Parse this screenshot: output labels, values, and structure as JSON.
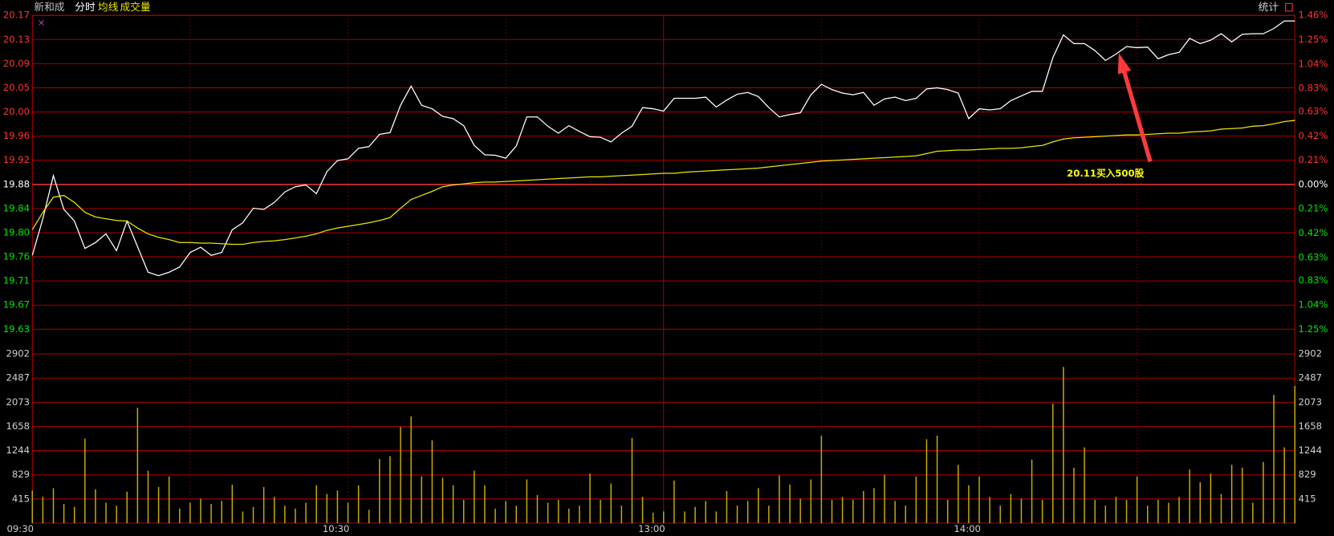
{
  "toolbar": {
    "stats": "统计"
  },
  "chart_data": [
    {
      "type": "line",
      "title": "新和成",
      "categories": [
        "09:30",
        null,
        null,
        null,
        null,
        null,
        null,
        null,
        null,
        null,
        null,
        null,
        null,
        null,
        null,
        null,
        null,
        null,
        null,
        null,
        null,
        null,
        null,
        null,
        null,
        null,
        null,
        null,
        null,
        null,
        "10:30",
        null,
        null,
        null,
        null,
        null,
        null,
        null,
        null,
        null,
        null,
        null,
        null,
        null,
        null,
        null,
        null,
        null,
        null,
        null,
        null,
        null,
        null,
        null,
        null,
        null,
        null,
        null,
        null,
        null,
        "13:00",
        null,
        null,
        null,
        null,
        null,
        null,
        null,
        null,
        null,
        null,
        null,
        null,
        null,
        null,
        null,
        null,
        null,
        null,
        null,
        null,
        null,
        null,
        null,
        null,
        null,
        null,
        null,
        null,
        null,
        "14:00",
        null,
        null,
        null,
        null,
        null,
        null,
        null,
        null,
        null,
        null,
        null,
        null,
        null,
        null,
        null,
        null,
        null,
        null,
        null,
        null,
        null,
        null,
        null,
        null,
        null,
        null,
        null,
        null,
        null,
        null
      ],
      "series": [
        {
          "name": "分时",
          "color": "#ffffff",
          "values": [
            19.758,
            19.821,
            19.895,
            19.837,
            19.817,
            19.77,
            19.78,
            19.795,
            19.766,
            19.817,
            19.773,
            19.729,
            19.723,
            19.729,
            19.738,
            19.763,
            19.772,
            19.758,
            19.763,
            19.802,
            19.814,
            19.839,
            19.837,
            19.849,
            19.867,
            19.876,
            19.879,
            19.864,
            19.902,
            19.921,
            19.924,
            19.942,
            19.945,
            19.966,
            19.969,
            20.016,
            20.049,
            20.016,
            20.01,
            19.997,
            19.993,
            19.981,
            19.947,
            19.931,
            19.93,
            19.925,
            19.946,
            19.996,
            19.996,
            19.98,
            19.968,
            19.981,
            19.971,
            19.962,
            19.961,
            19.953,
            19.968,
            19.98,
            20.012,
            20.01,
            20.006,
            20.028,
            20.028,
            20.028,
            20.03,
            20.013,
            20.025,
            20.035,
            20.038,
            20.031,
            20.012,
            19.996,
            20.0,
            20.003,
            20.034,
            20.052,
            20.043,
            20.037,
            20.034,
            20.038,
            20.016,
            20.027,
            20.03,
            20.024,
            20.028,
            20.044,
            20.046,
            20.043,
            20.037,
            19.993,
            20.01,
            20.008,
            20.01,
            20.024,
            20.032,
            20.04,
            20.04,
            20.098,
            20.137,
            20.122,
            20.122,
            20.11,
            20.093,
            20.104,
            20.117,
            20.115,
            20.116,
            20.096,
            20.103,
            20.107,
            20.131,
            20.122,
            20.128,
            20.139,
            20.125,
            20.138,
            20.139,
            20.139,
            20.148,
            20.161,
            20.161
          ]
        },
        {
          "name": "均线",
          "color": "#e6e600",
          "values": [
            19.802,
            19.832,
            19.858,
            19.861,
            19.849,
            19.832,
            19.824,
            19.821,
            19.818,
            19.817,
            19.805,
            19.795,
            19.789,
            19.785,
            19.78,
            19.78,
            19.779,
            19.779,
            19.778,
            19.777,
            19.777,
            19.78,
            19.782,
            19.783,
            19.785,
            19.788,
            19.791,
            19.795,
            19.801,
            19.805,
            19.808,
            19.811,
            19.814,
            19.818,
            19.823,
            19.839,
            19.854,
            19.861,
            19.868,
            19.876,
            19.879,
            19.881,
            19.883,
            19.884,
            19.884,
            19.885,
            19.886,
            19.887,
            19.888,
            19.889,
            19.89,
            19.891,
            19.892,
            19.893,
            19.893,
            19.894,
            19.895,
            19.896,
            19.897,
            19.898,
            19.899,
            19.899,
            19.901,
            19.902,
            19.903,
            19.904,
            19.905,
            19.906,
            19.907,
            19.908,
            19.91,
            19.912,
            19.914,
            19.916,
            19.918,
            19.92,
            19.921,
            19.922,
            19.923,
            19.924,
            19.925,
            19.926,
            19.927,
            19.928,
            19.929,
            19.933,
            19.937,
            19.938,
            19.939,
            19.939,
            19.94,
            19.941,
            19.942,
            19.942,
            19.943,
            19.945,
            19.947,
            19.953,
            19.958,
            19.96,
            19.961,
            19.962,
            19.963,
            19.964,
            19.965,
            19.965,
            19.966,
            19.967,
            19.968,
            19.968,
            19.97,
            19.971,
            19.972,
            19.975,
            19.976,
            19.977,
            19.98,
            19.981,
            19.984,
            19.988,
            19.99
          ]
        }
      ],
      "ylim": [
        19.631,
        20.1705
      ],
      "yticks": [
        {
          "value": 20.1705,
          "label": "20.17"
        },
        {
          "value": 20.129,
          "label": "20.13"
        },
        {
          "value": 20.0875,
          "label": "20.09"
        },
        {
          "value": 20.046,
          "label": "20.05"
        },
        {
          "value": 20.0045,
          "label": "20.00"
        },
        {
          "value": 19.963,
          "label": "19.96"
        },
        {
          "value": 19.9215,
          "label": "19.92"
        },
        19.88,
        {
          "value": 19.8385,
          "label": "19.84"
        },
        {
          "value": 19.797,
          "label": "19.80"
        },
        {
          "value": 19.7555,
          "label": "19.76"
        },
        {
          "value": 19.714,
          "label": "19.71"
        },
        {
          "value": 19.6725,
          "label": "19.67"
        },
        {
          "value": 19.631,
          "label": "19.63"
        }
      ],
      "y2lim": [
        -1.25,
        1.46
      ],
      "y2ticks": [
        {
          "value": 1.46,
          "label": "1.46%"
        },
        {
          "value": 1.25,
          "label": "1.25%"
        },
        {
          "value": 1.04,
          "label": "1.04%"
        },
        {
          "value": 0.83,
          "label": "0.83%"
        },
        {
          "value": 0.63,
          "label": "0.63%"
        },
        {
          "value": 0.42,
          "label": "0.42%"
        },
        {
          "value": 0.21,
          "label": "0.21%"
        },
        {
          "value": 0,
          "label": "0.00%"
        },
        {
          "value": -0.21,
          "label": "0.21%"
        },
        {
          "value": -0.42,
          "label": "0.42%"
        },
        {
          "value": -0.63,
          "label": "0.63%"
        },
        {
          "value": -0.83,
          "label": "0.83%"
        },
        {
          "value": -1.04,
          "label": "1.04%"
        },
        {
          "value": -1.25,
          "label": "1.25%"
        }
      ],
      "grid": true,
      "annotations": [
        {
          "text": "20.11买入500股"
        }
      ]
    },
    {
      "type": "bar",
      "series": [
        {
          "name": "成交量",
          "color": "#c8aa00",
          "values": [
            560,
            450,
            600,
            330,
            280,
            1450,
            580,
            350,
            300,
            540,
            1980,
            900,
            620,
            800,
            250,
            350,
            420,
            330,
            380,
            660,
            200,
            280,
            620,
            450,
            300,
            250,
            350,
            650,
            500,
            560,
            350,
            650,
            230,
            1100,
            1150,
            1650,
            1830,
            800,
            1420,
            780,
            650,
            400,
            900,
            650,
            250,
            380,
            300,
            750,
            480,
            350,
            400,
            250,
            300,
            850,
            400,
            680,
            300,
            1460,
            450,
            180,
            200,
            730,
            200,
            280,
            380,
            200,
            550,
            300,
            380,
            600,
            300,
            820,
            660,
            420,
            750,
            1500,
            400,
            450,
            400,
            550,
            600,
            830,
            380,
            300,
            800,
            1440,
            1500,
            400,
            1000,
            650,
            800,
            450,
            300,
            500,
            420,
            1090,
            400,
            2050,
            2680,
            950,
            1300,
            400,
            300,
            450,
            400,
            800,
            300,
            400,
            350,
            450,
            920,
            700,
            850,
            500,
            1000,
            950,
            350,
            1050,
            2200,
            1300,
            2350
          ]
        }
      ],
      "ylim": [
        0,
        2902
      ],
      "yticks": [
        415,
        829,
        1244,
        1658,
        2073,
        2487,
        2902
      ],
      "grid": true
    }
  ]
}
